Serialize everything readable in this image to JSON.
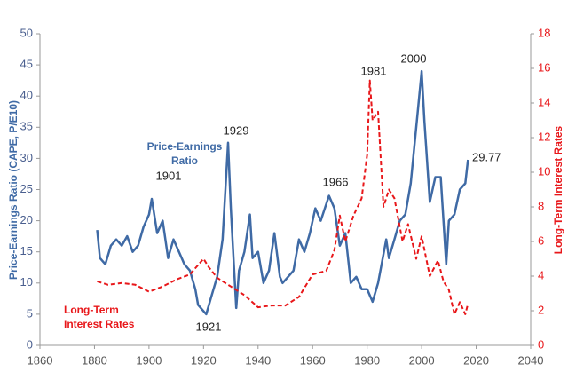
{
  "chart_data": {
    "type": "line",
    "y_label": "Price-Earnings Ratio (CAPE, P/E10)",
    "y2_label": "Long-Term Interest Rates",
    "xlim": [
      1860,
      2040
    ],
    "xticks": [
      1860,
      1880,
      1900,
      1920,
      1940,
      1960,
      1980,
      2000,
      2020,
      2040
    ],
    "ylim": [
      0,
      50
    ],
    "yticks": [
      0,
      5,
      10,
      15,
      20,
      25,
      30,
      35,
      40,
      45,
      50
    ],
    "y2lim": [
      0,
      18
    ],
    "y2ticks": [
      0,
      2,
      4,
      6,
      8,
      10,
      12,
      14,
      16,
      18
    ],
    "annotations": [
      "1901",
      "1929",
      "1966",
      "1981",
      "2000",
      "1921"
    ],
    "series": [
      {
        "name": "Price-Earnings Ratio",
        "color": "#3f6aa5",
        "axis": "y",
        "x": [
          1881,
          1882,
          1884,
          1886,
          1888,
          1890,
          1892,
          1894,
          1896,
          1898,
          1900,
          1901,
          1903,
          1905,
          1907,
          1909,
          1911,
          1913,
          1915,
          1917,
          1918,
          1920,
          1921,
          1923,
          1925,
          1927,
          1929,
          1930,
          1931,
          1932,
          1933,
          1935,
          1937,
          1938,
          1940,
          1942,
          1944,
          1946,
          1948,
          1949,
          1951,
          1953,
          1955,
          1957,
          1959,
          1961,
          1963,
          1966,
          1968,
          1970,
          1972,
          1974,
          1976,
          1978,
          1980,
          1982,
          1984,
          1987,
          1988,
          1990,
          1992,
          1994,
          1996,
          1998,
          2000,
          2001,
          2003,
          2005,
          2007,
          2009,
          2010,
          2012,
          2014,
          2016,
          2017
        ],
        "values": [
          18.5,
          14,
          13,
          16,
          17,
          16,
          17.5,
          15,
          16,
          19,
          21,
          23.5,
          18,
          20,
          14,
          17,
          15,
          13,
          12,
          9,
          6.5,
          5.5,
          5,
          8,
          11,
          17,
          32.5,
          22,
          14,
          6,
          12,
          15,
          21,
          14,
          15,
          10,
          12,
          18,
          11,
          10,
          11,
          12,
          17,
          15,
          18,
          22,
          20,
          24,
          22,
          16,
          18,
          10,
          11,
          9,
          9,
          7,
          10,
          17,
          14,
          17,
          20,
          21,
          26,
          35,
          44,
          36,
          23,
          27,
          27,
          13,
          20,
          21,
          25,
          26,
          29.77
        ]
      },
      {
        "name": "Long-Term Interest Rates",
        "color": "#e8171a",
        "axis": "y2",
        "x": [
          1881,
          1885,
          1890,
          1895,
          1900,
          1905,
          1910,
          1915,
          1920,
          1922,
          1925,
          1930,
          1935,
          1940,
          1945,
          1950,
          1955,
          1960,
          1965,
          1968,
          1970,
          1972,
          1975,
          1978,
          1980,
          1981,
          1982,
          1984,
          1986,
          1988,
          1990,
          1993,
          1995,
          1998,
          2000,
          2003,
          2006,
          2008,
          2010,
          2012,
          2014,
          2016,
          2017
        ],
        "values": [
          3.7,
          3.5,
          3.6,
          3.5,
          3.1,
          3.4,
          3.8,
          4.1,
          5.0,
          4.5,
          3.9,
          3.4,
          2.9,
          2.2,
          2.3,
          2.3,
          2.8,
          4.1,
          4.3,
          5.5,
          7.5,
          6.0,
          7.5,
          8.5,
          11,
          15.3,
          13,
          13.5,
          8,
          9,
          8.5,
          6,
          7,
          5,
          6.3,
          4,
          4.9,
          3.7,
          3.2,
          1.8,
          2.5,
          1.8,
          2.4
        ]
      }
    ]
  }
}
